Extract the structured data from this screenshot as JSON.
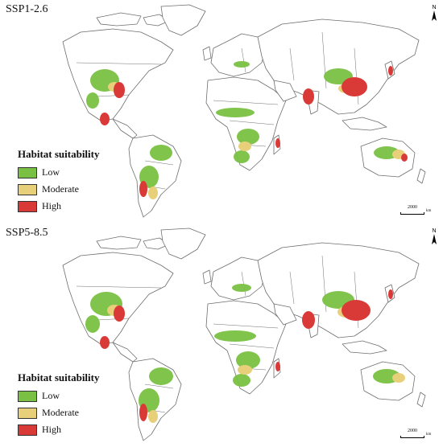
{
  "legend": {
    "title": "Habitat suitability",
    "items": [
      {
        "label": "Low",
        "color": "#7ac143"
      },
      {
        "label": "Moderate",
        "color": "#e8cf7a"
      },
      {
        "label": "High",
        "color": "#d93a38"
      }
    ]
  },
  "colors": {
    "land_outline": "#6e6e6e",
    "land_fill": "#ffffff"
  },
  "scalebar": {
    "value": "2000",
    "unit": "km"
  },
  "north_arrow": {
    "label": "N"
  },
  "panels": [
    {
      "scenario": "SSP1-2.6"
    },
    {
      "scenario": "SSP5-8.5"
    }
  ]
}
